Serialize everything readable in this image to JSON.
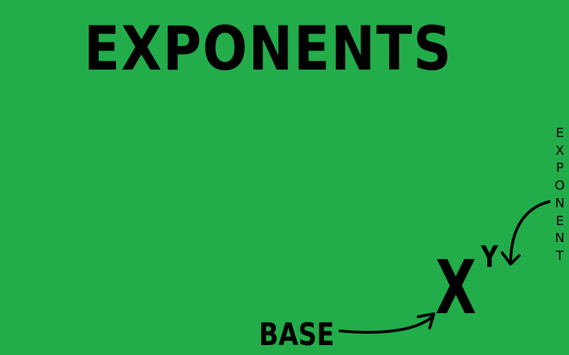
{
  "title": "EXPONENTS",
  "expression": {
    "base_variable": "X",
    "exponent_variable": "Y"
  },
  "labels": {
    "base": "BASE",
    "exponent": "EXPONENT"
  },
  "colors": {
    "background": "#23ad4a",
    "ink": "#000000"
  }
}
